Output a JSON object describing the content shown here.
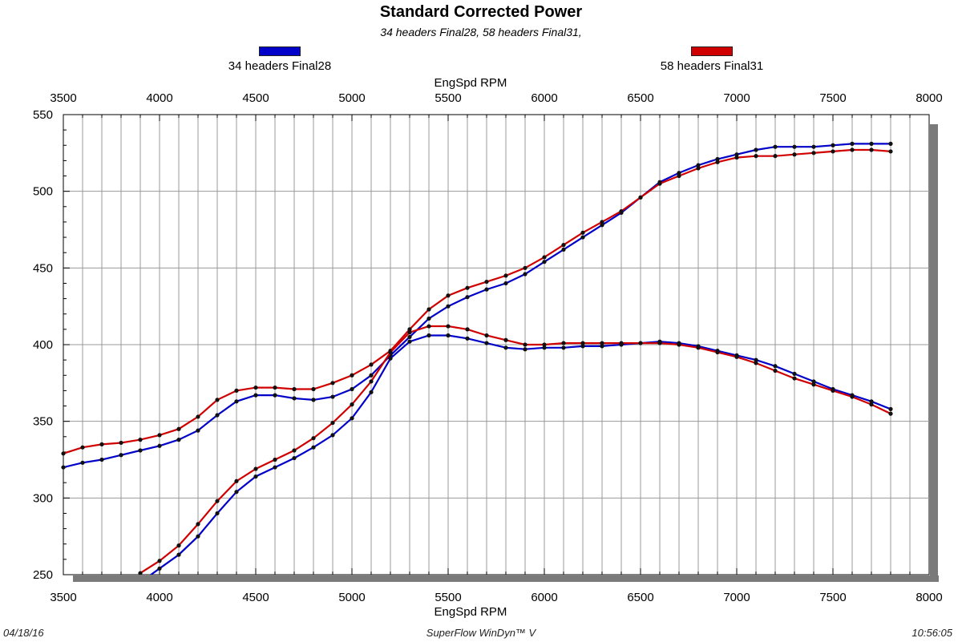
{
  "header": {
    "title": "Standard Corrected Power",
    "subtitle": "34 headers Final28, 58 headers Final31,"
  },
  "footer": {
    "date": "04/18/16",
    "software": "SuperFlow WinDyn™ V",
    "time": "10:56:05"
  },
  "chart_data": {
    "type": "line",
    "title": "Standard Corrected Power",
    "subtitle": "34 headers Final28, 58 headers Final31,",
    "xlabel": "EngSpd RPM",
    "ylabel": "",
    "xlim": [
      3500,
      8000
    ],
    "ylim": [
      250,
      550
    ],
    "x_ticks": [
      "3500",
      "4000",
      "4500",
      "5000",
      "5500",
      "6000",
      "6500",
      "7000",
      "7500",
      "8000"
    ],
    "y_ticks": [
      "250",
      "300",
      "350",
      "400",
      "450",
      "500",
      "550"
    ],
    "grid": true,
    "legend_position": "top",
    "series": [
      {
        "name": "34 headers Final28",
        "metric": "power",
        "color": "#0000c8",
        "points": [
          [
            3500,
            320
          ],
          [
            3600,
            323
          ],
          [
            3700,
            325
          ],
          [
            3800,
            328
          ],
          [
            3900,
            331
          ],
          [
            4000,
            334
          ],
          [
            4100,
            338
          ],
          [
            4200,
            344
          ],
          [
            4300,
            354
          ],
          [
            4400,
            363
          ],
          [
            4500,
            367
          ],
          [
            4600,
            367
          ],
          [
            4700,
            365
          ],
          [
            4800,
            364
          ],
          [
            4900,
            366
          ],
          [
            5000,
            371
          ],
          [
            5100,
            380
          ],
          [
            5200,
            393
          ],
          [
            5300,
            405
          ],
          [
            5400,
            417
          ],
          [
            5500,
            425
          ],
          [
            5600,
            431
          ],
          [
            5700,
            436
          ],
          [
            5800,
            440
          ],
          [
            5900,
            446
          ],
          [
            6000,
            454
          ],
          [
            6100,
            462
          ],
          [
            6200,
            470
          ],
          [
            6300,
            478
          ],
          [
            6400,
            486
          ],
          [
            6500,
            496
          ],
          [
            6600,
            506
          ],
          [
            6700,
            512
          ],
          [
            6800,
            517
          ],
          [
            6900,
            521
          ],
          [
            7000,
            524
          ],
          [
            7100,
            527
          ],
          [
            7200,
            529
          ],
          [
            7300,
            529
          ],
          [
            7400,
            529
          ],
          [
            7500,
            530
          ],
          [
            7600,
            531
          ],
          [
            7700,
            531
          ],
          [
            7800,
            531
          ]
        ]
      },
      {
        "name": "58 headers Final31",
        "metric": "power",
        "color": "#d00000",
        "points": [
          [
            3500,
            329
          ],
          [
            3600,
            333
          ],
          [
            3700,
            335
          ],
          [
            3800,
            336
          ],
          [
            3900,
            338
          ],
          [
            4000,
            341
          ],
          [
            4100,
            345
          ],
          [
            4200,
            353
          ],
          [
            4300,
            364
          ],
          [
            4400,
            370
          ],
          [
            4500,
            372
          ],
          [
            4600,
            372
          ],
          [
            4700,
            371
          ],
          [
            4800,
            371
          ],
          [
            4900,
            375
          ],
          [
            5000,
            380
          ],
          [
            5100,
            387
          ],
          [
            5200,
            396
          ],
          [
            5300,
            410
          ],
          [
            5400,
            423
          ],
          [
            5500,
            432
          ],
          [
            5600,
            437
          ],
          [
            5700,
            441
          ],
          [
            5800,
            445
          ],
          [
            5900,
            450
          ],
          [
            6000,
            457
          ],
          [
            6100,
            465
          ],
          [
            6200,
            473
          ],
          [
            6300,
            480
          ],
          [
            6400,
            487
          ],
          [
            6500,
            496
          ],
          [
            6600,
            505
          ],
          [
            6700,
            510
          ],
          [
            6800,
            515
          ],
          [
            6900,
            519
          ],
          [
            7000,
            522
          ],
          [
            7100,
            523
          ],
          [
            7200,
            523
          ],
          [
            7300,
            524
          ],
          [
            7400,
            525
          ],
          [
            7500,
            526
          ],
          [
            7600,
            527
          ],
          [
            7700,
            527
          ],
          [
            7800,
            526
          ]
        ]
      },
      {
        "name": "34 headers Final28",
        "metric": "torque",
        "color": "#0000c8",
        "points": [
          [
            3900,
            245
          ],
          [
            4000,
            254
          ],
          [
            4100,
            263
          ],
          [
            4200,
            275
          ],
          [
            4300,
            290
          ],
          [
            4400,
            304
          ],
          [
            4500,
            314
          ],
          [
            4600,
            320
          ],
          [
            4700,
            326
          ],
          [
            4800,
            333
          ],
          [
            4900,
            341
          ],
          [
            5000,
            352
          ],
          [
            5100,
            369
          ],
          [
            5200,
            391
          ],
          [
            5300,
            402
          ],
          [
            5400,
            406
          ],
          [
            5500,
            406
          ],
          [
            5600,
            404
          ],
          [
            5700,
            401
          ],
          [
            5800,
            398
          ],
          [
            5900,
            397
          ],
          [
            6000,
            398
          ],
          [
            6100,
            398
          ],
          [
            6200,
            399
          ],
          [
            6300,
            399
          ],
          [
            6400,
            400
          ],
          [
            6500,
            401
          ],
          [
            6600,
            402
          ],
          [
            6700,
            401
          ],
          [
            6800,
            399
          ],
          [
            6900,
            396
          ],
          [
            7000,
            393
          ],
          [
            7100,
            390
          ],
          [
            7200,
            386
          ],
          [
            7300,
            381
          ],
          [
            7400,
            376
          ],
          [
            7500,
            371
          ],
          [
            7600,
            367
          ],
          [
            7700,
            363
          ],
          [
            7800,
            358
          ]
        ]
      },
      {
        "name": "58 headers Final31",
        "metric": "torque",
        "color": "#d00000",
        "points": [
          [
            3900,
            251
          ],
          [
            4000,
            259
          ],
          [
            4100,
            269
          ],
          [
            4200,
            283
          ],
          [
            4300,
            298
          ],
          [
            4400,
            311
          ],
          [
            4500,
            319
          ],
          [
            4600,
            325
          ],
          [
            4700,
            331
          ],
          [
            4800,
            339
          ],
          [
            4900,
            349
          ],
          [
            5000,
            361
          ],
          [
            5100,
            376
          ],
          [
            5200,
            395
          ],
          [
            5300,
            408
          ],
          [
            5400,
            412
          ],
          [
            5500,
            412
          ],
          [
            5600,
            410
          ],
          [
            5700,
            406
          ],
          [
            5800,
            403
          ],
          [
            5900,
            400
          ],
          [
            6000,
            400
          ],
          [
            6100,
            401
          ],
          [
            6200,
            401
          ],
          [
            6300,
            401
          ],
          [
            6400,
            401
          ],
          [
            6500,
            401
          ],
          [
            6600,
            401
          ],
          [
            6700,
            400
          ],
          [
            6800,
            398
          ],
          [
            6900,
            395
          ],
          [
            7000,
            392
          ],
          [
            7100,
            388
          ],
          [
            7200,
            383
          ],
          [
            7300,
            378
          ],
          [
            7400,
            374
          ],
          [
            7500,
            370
          ],
          [
            7600,
            366
          ],
          [
            7700,
            361
          ],
          [
            7800,
            355
          ]
        ]
      }
    ]
  }
}
